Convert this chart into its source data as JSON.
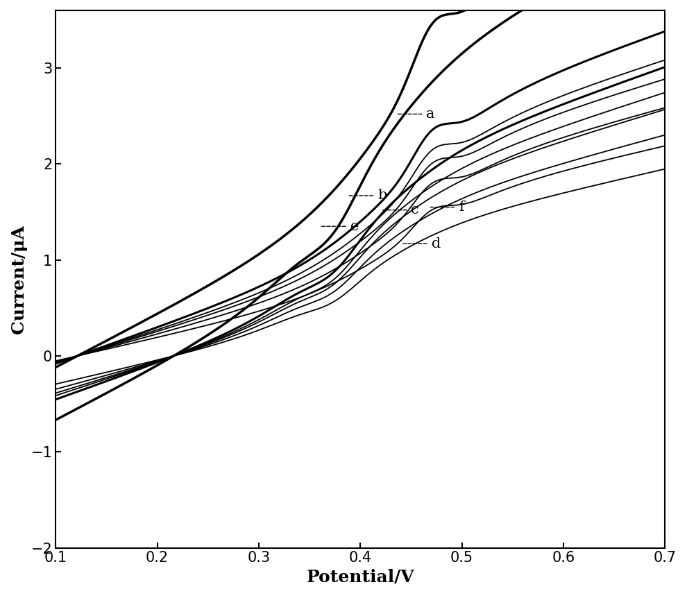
{
  "title": "",
  "xlabel": "Potential/V",
  "ylabel": "Current/μA",
  "xlim": [
    0.1,
    0.7
  ],
  "ylim": [
    -2.0,
    3.6
  ],
  "xticks": [
    0.1,
    0.2,
    0.3,
    0.4,
    0.5,
    0.6,
    0.7
  ],
  "yticks": [
    -2,
    -1,
    0,
    1,
    2,
    3
  ],
  "background_color": "#ffffff",
  "line_color": "#000000",
  "fontsize_label": 18,
  "fontsize_tick": 15,
  "fontsize_curve_label": 15,
  "curves": [
    {
      "label": "a",
      "amp": 1.0,
      "lw": 2.5,
      "lpos": [
        0.463,
        2.52
      ]
    },
    {
      "label": "b",
      "amp": 0.68,
      "lw": 2.2,
      "lpos": [
        0.415,
        1.67
      ]
    },
    {
      "label": "c",
      "amp": 0.58,
      "lw": 1.3,
      "lpos": [
        0.448,
        1.52
      ]
    },
    {
      "label": "d",
      "amp": 0.44,
      "lw": 1.3,
      "lpos": [
        0.468,
        1.17
      ]
    },
    {
      "label": "e",
      "amp": 0.52,
      "lw": 1.3,
      "lpos": [
        0.388,
        1.35
      ]
    },
    {
      "label": "f",
      "amp": 0.62,
      "lw": 1.3,
      "lpos": [
        0.495,
        1.55
      ]
    }
  ]
}
